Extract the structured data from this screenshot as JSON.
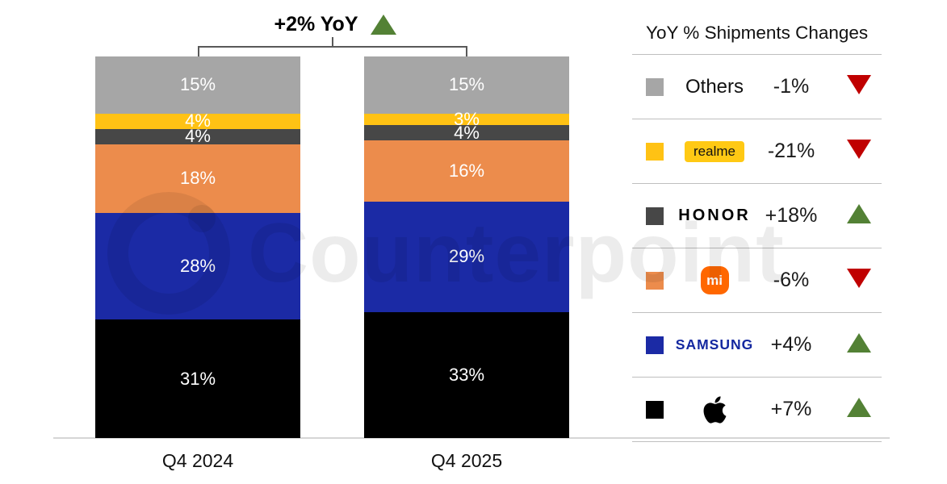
{
  "watermark": {
    "text": "Counterpoint"
  },
  "annotation": {
    "label": "+2% YoY",
    "direction": "up"
  },
  "colors": {
    "others": "#a6a6a6",
    "realme": "#ffc214",
    "honor": "#474747",
    "xiaomi": "#ec8c4c",
    "samsung": "#1b2aa5",
    "apple": "#000000",
    "green": "#538135",
    "red": "#c00000",
    "samsung_logo": "#1428a0",
    "realme_badge": "#ffc914",
    "mi_logo": "#ff6700"
  },
  "chart_data": {
    "type": "stacked_bar",
    "title": "+2% YoY",
    "categories": [
      "Q4 2024",
      "Q4 2025"
    ],
    "unit": "percent share",
    "stack_order_bottom_to_top": [
      "Apple",
      "Samsung",
      "Xiaomi",
      "HONOR",
      "realme",
      "Others"
    ],
    "series": [
      {
        "name": "Apple",
        "color_key": "apple",
        "values": [
          31,
          33
        ]
      },
      {
        "name": "Samsung",
        "color_key": "samsung",
        "values": [
          28,
          29
        ]
      },
      {
        "name": "Xiaomi",
        "color_key": "xiaomi",
        "values": [
          18,
          16
        ]
      },
      {
        "name": "HONOR",
        "color_key": "honor",
        "values": [
          4,
          4
        ]
      },
      {
        "name": "realme",
        "color_key": "realme",
        "values": [
          4,
          3
        ]
      },
      {
        "name": "Others",
        "color_key": "others",
        "values": [
          15,
          15
        ]
      }
    ],
    "total_yoy_change": "+2%",
    "legend_position": "right",
    "ylim": [
      0,
      100
    ],
    "grid": false
  },
  "legend": {
    "title": "YoY % Shipments Changes",
    "rows": [
      {
        "brand": "Others",
        "change": "-1%",
        "direction": "down"
      },
      {
        "brand": "realme",
        "change": "-21%",
        "direction": "down"
      },
      {
        "brand": "HONOR",
        "change": "+18%",
        "direction": "up"
      },
      {
        "brand": "mi",
        "change": "-6%",
        "direction": "down"
      },
      {
        "brand": "SAMSUNG",
        "change": "+4%",
        "direction": "up"
      },
      {
        "brand": "Apple",
        "change": "+7%",
        "direction": "up"
      }
    ]
  }
}
